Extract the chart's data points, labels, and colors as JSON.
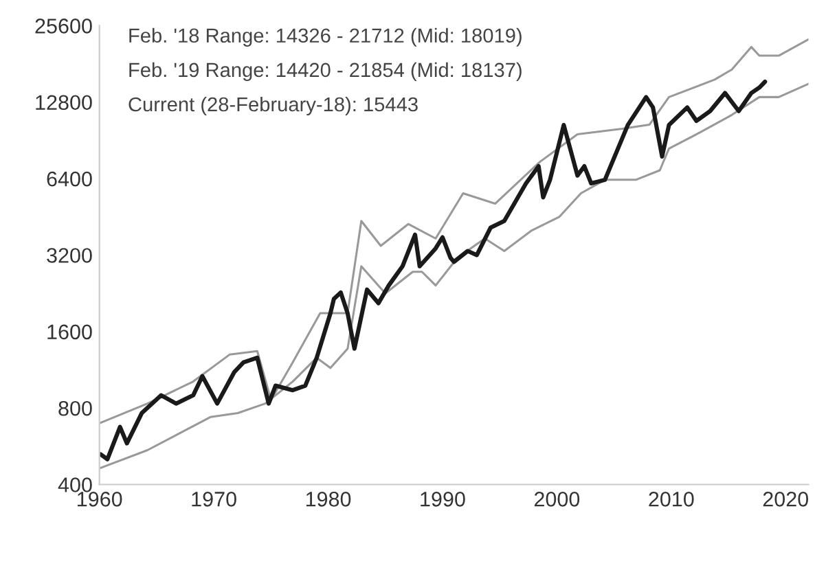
{
  "chart_data": {
    "type": "line",
    "log": "y",
    "grid": false,
    "legend": false,
    "marker": "none",
    "line_style": "solid",
    "xlim": [
      1960,
      2022
    ],
    "xticks": [
      1960,
      1970,
      1980,
      1990,
      2000,
      2010,
      2020
    ],
    "ylim": [
      400,
      25600
    ],
    "yticks": [
      400,
      800,
      1600,
      3200,
      6400,
      12800,
      25600
    ],
    "annotations": [
      "Feb. '18 Range: 14326 - 21712 (Mid: 18019)",
      "Feb. '19 Range: 14420 - 21854 (Mid: 18137)",
      "Current (28-February-18): 15443"
    ],
    "series": [
      {
        "color": "#999999",
        "x": [
          1960.1,
          1964.2,
          1968.2,
          1971.4,
          1973.8,
          1975.0,
          1976.9,
          1979.3,
          1981.7,
          1982.9,
          1984.6,
          1987.0,
          1989.4,
          1991.8,
          1994.6,
          1998.5,
          2001.8,
          2005.7,
          2008.1,
          2009.8,
          2013.8,
          2015.3,
          2017.0,
          2017.7,
          2019.4,
          2022.0
        ],
        "values": [
          700,
          833,
          1017,
          1300,
          1340,
          860,
          1210,
          1890,
          1890,
          4360,
          3480,
          4240,
          3720,
          5600,
          5100,
          7440,
          9560,
          10050,
          10440,
          13400,
          15700,
          17200,
          21100,
          19500,
          19500,
          22600
        ]
      },
      {
        "color": "#999999",
        "x": [
          1960.1,
          1964.2,
          1969.7,
          1972.1,
          1974.5,
          1976.9,
          1979.0,
          1980.2,
          1981.7,
          1982.9,
          1985.0,
          1987.4,
          1988.2,
          1989.4,
          1991.3,
          1993.7,
          1995.4,
          1997.8,
          2000.2,
          2002.1,
          2004.2,
          2006.9,
          2009.0,
          2009.8,
          2012.2,
          2015.3,
          2017.7,
          2019.4,
          2022.0
        ],
        "values": [
          465,
          546,
          737,
          764,
          833,
          1017,
          1262,
          1150,
          1370,
          2890,
          2260,
          2750,
          2750,
          2430,
          3120,
          3720,
          3320,
          4000,
          4520,
          5600,
          6330,
          6330,
          6900,
          8400,
          9560,
          11400,
          13400,
          13400,
          15100
        ]
      },
      {
        "color": "#1a1a1a",
        "x": [
          1960.1,
          1960.7,
          1961.8,
          1962.4,
          1963.7,
          1965.4,
          1966.7,
          1968.2,
          1969.0,
          1970.3,
          1971.8,
          1972.6,
          1973.8,
          1974.8,
          1975.4,
          1976.9,
          1978.0,
          1979.0,
          1980.2,
          1980.5,
          1981.1,
          1981.7,
          1982.3,
          1983.4,
          1984.4,
          1985.3,
          1986.5,
          1987.6,
          1988.0,
          1989.4,
          1990.0,
          1990.7,
          1991.0,
          1992.2,
          1993.0,
          1994.2,
          1995.4,
          1997.3,
          1998.4,
          1998.8,
          1999.4,
          2000.6,
          2001.8,
          2002.4,
          2003.0,
          2004.2,
          2006.2,
          2007.8,
          2008.4,
          2009.2,
          2009.8,
          2011.4,
          2012.2,
          2013.4,
          2014.7,
          2015.9,
          2017.0,
          2017.7,
          2018.2
        ],
        "values": [
          526,
          503,
          674,
          581,
          764,
          898,
          833,
          898,
          1068,
          833,
          1110,
          1210,
          1262,
          833,
          980,
          940,
          980,
          1262,
          1890,
          2150,
          2280,
          1890,
          1370,
          2340,
          2070,
          2430,
          2890,
          3850,
          2890,
          3400,
          3760,
          3120,
          3010,
          3320,
          3200,
          4100,
          4360,
          6130,
          7160,
          5400,
          6330,
          10400,
          6580,
          7160,
          6130,
          6330,
          10400,
          13400,
          12200,
          7820,
          10400,
          12200,
          10800,
          11800,
          13900,
          11800,
          13900,
          14600,
          15400
        ]
      }
    ]
  }
}
